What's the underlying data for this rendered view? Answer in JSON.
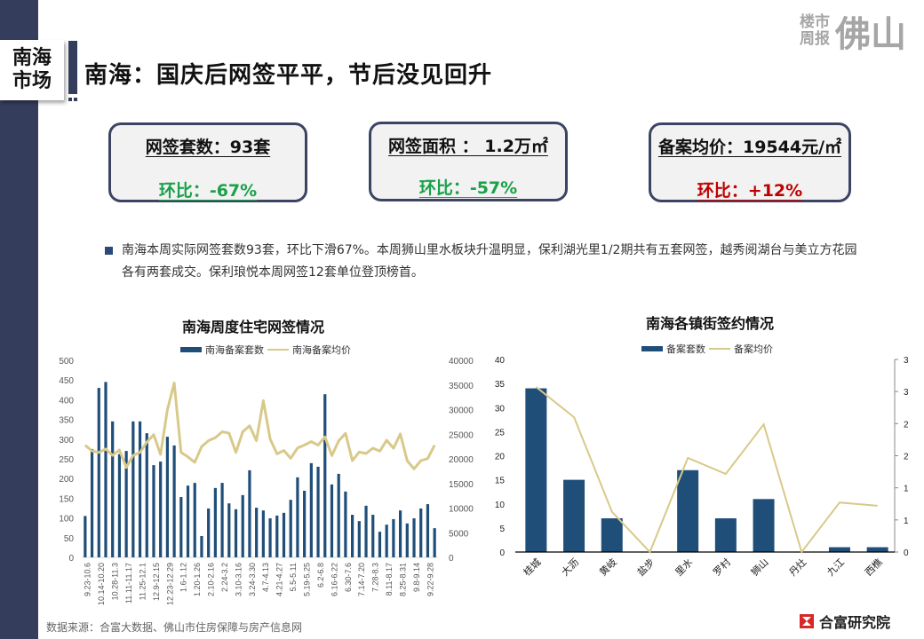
{
  "header": {
    "section_tag_line1": "南海",
    "section_tag_line2": "市场",
    "title": "南海：国庆后网签平平，节后没见回升",
    "brand_small_line1": "楼市",
    "brand_small_line2": "周报",
    "brand_big": "佛山"
  },
  "kpis": [
    {
      "head": "网签套数：93套",
      "change": "环比：-67%",
      "trend": "down",
      "color": "#1aa14a"
    },
    {
      "head": "网签面积 ： 1.2万㎡",
      "change": "环比：-57%",
      "trend": "down",
      "color": "#1aa14a"
    },
    {
      "head": "备案均价：19544元/㎡",
      "change": "环比：+12%",
      "trend": "up",
      "color": "#c00000"
    }
  ],
  "summary": "南海本周实际网签套数93套，环比下滑67%。本周狮山里水板块升温明显，保利湖光里1/2期共有五套网签，越秀阅湖台与美立方花园各有两套成交。保利琅悦本周网签12套单位登顶榜首。",
  "footer": {
    "source": "数据来源：合富大数据、佛山市住房保障与房产信息网",
    "logo_text": "合富研究院"
  },
  "colors": {
    "bar": "#1f4e79",
    "line": "#d8c98a",
    "sidebar": "#353d5c"
  },
  "chart_data": [
    {
      "type": "bar+line",
      "title": "南海周度住宅网签情况",
      "legend": [
        "南海备案套数",
        "南海备案均价"
      ],
      "legend_position": "top",
      "grid": false,
      "y_left": {
        "label": "",
        "range": [
          0,
          500
        ],
        "ticks": [
          0,
          50,
          100,
          150,
          200,
          250,
          300,
          350,
          400,
          450,
          500
        ]
      },
      "y_right": {
        "label": "",
        "range": [
          0,
          40000
        ],
        "ticks": [
          0,
          5000,
          10000,
          15000,
          20000,
          25000,
          30000,
          35000,
          40000
        ]
      },
      "x_tick_labels": [
        "9.23-10.6",
        "10.14-10.20",
        "10.28-11.3",
        "11.11-11.17",
        "11.25-12.1",
        "12.9-12.15",
        "12.23-12.29",
        "1.6-1.12",
        "1.20-1.26",
        "2.10-2.16",
        "2.24-3.2",
        "3.10-3.16",
        "3.24-3.30",
        "4.7-4.13",
        "4.21-4.27",
        "5.5-5.11",
        "5.19-5.25",
        "6.2-6.8",
        "6.16-6.22",
        "6.30-7.6",
        "7.14-7.20",
        "7.28-8.3",
        "8.11-8.17",
        "8.25-8.31",
        "9.8-9.14",
        "9.22-9.28"
      ],
      "series": [
        {
          "name": "南海备案套数",
          "axis": "left",
          "type": "bar",
          "values": [
            105,
            275,
            430,
            445,
            345,
            262,
            270,
            345,
            345,
            315,
            234,
            243,
            306,
            284,
            153,
            182,
            189,
            54,
            124,
            176,
            189,
            137,
            122,
            158,
            221,
            126,
            119,
            99,
            106,
            113,
            146,
            203,
            169,
            239,
            230,
            414,
            185,
            212,
            167,
            108,
            92,
            131,
            108,
            65,
            83,
            97,
            119,
            86,
            99,
            124,
            135,
            74
          ]
        },
        {
          "name": "南海备案均价",
          "axis": "right",
          "type": "line",
          "values": [
            22760,
            21600,
            21300,
            22000,
            20700,
            21800,
            18250,
            20700,
            21300,
            23400,
            24900,
            20900,
            29970,
            35400,
            21300,
            20400,
            19300,
            22500,
            23700,
            24300,
            25500,
            25200,
            21300,
            25500,
            26700,
            23700,
            31800,
            24000,
            21000,
            21700,
            20100,
            22200,
            22800,
            23500,
            22800,
            24450,
            20650,
            23650,
            25170,
            19640,
            21380,
            21080,
            22160,
            21560,
            23780,
            22160,
            25050,
            19640,
            17960,
            19640,
            20060,
            22760
          ]
        }
      ]
    },
    {
      "type": "bar+line",
      "title": "南海各镇街签约情况",
      "legend": [
        "备案套数",
        "备案均价"
      ],
      "legend_position": "top",
      "grid": false,
      "categories": [
        "桂城",
        "大沥",
        "黄岐",
        "盐步",
        "里水",
        "罗村",
        "狮山",
        "丹灶",
        "九江",
        "西樵"
      ],
      "y_left": {
        "label": "",
        "range": [
          0,
          40
        ],
        "ticks": [
          0,
          5,
          10,
          15,
          20,
          25,
          30,
          35,
          40
        ]
      },
      "y_right": {
        "label": "",
        "range": [
          0,
          3.5
        ],
        "tick_labels": [
          "0",
          "1",
          "1",
          "2",
          "2",
          "3",
          "3"
        ]
      },
      "series": [
        {
          "name": "备案套数",
          "axis": "left",
          "type": "bar",
          "values": [
            34,
            15,
            7,
            0,
            17,
            7,
            11,
            0,
            1,
            1
          ]
        },
        {
          "name": "备案均价",
          "axis": "right",
          "type": "line",
          "values": [
            3.0,
            2.45,
            0.73,
            0,
            1.71,
            1.42,
            2.32,
            0,
            0.9,
            0.84
          ]
        }
      ]
    }
  ]
}
